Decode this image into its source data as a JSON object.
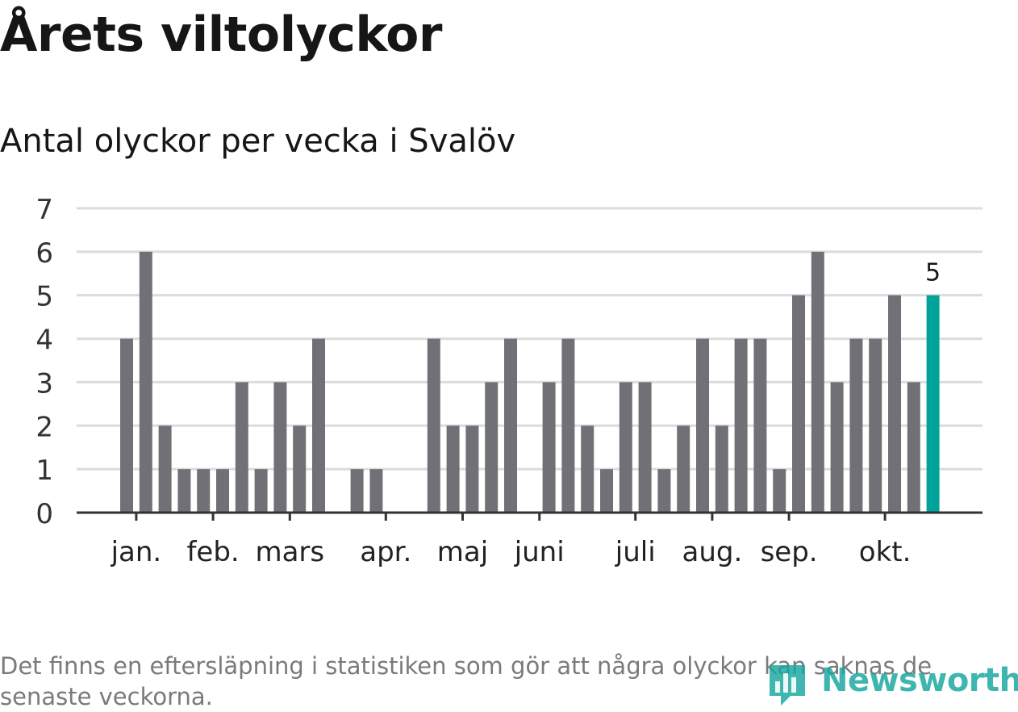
{
  "title": "Årets viltolyckor",
  "chart_data": {
    "type": "bar",
    "title": "Årets viltolyckor",
    "subtitle": "Antal olyckor per vecka i Svalöv",
    "xlabel": "",
    "ylabel": "",
    "ylim": [
      0,
      7
    ],
    "y_ticks": [
      "0",
      "1",
      "2",
      "3",
      "4",
      "5",
      "6",
      "7"
    ],
    "grid": true,
    "weeks": [
      1,
      2,
      3,
      4,
      5,
      6,
      7,
      8,
      9,
      10,
      11,
      12,
      13,
      14,
      15,
      16,
      17,
      18,
      19,
      20,
      21,
      22,
      23,
      24,
      25,
      26,
      27,
      28,
      29,
      30,
      31,
      32,
      33,
      34,
      35,
      36,
      37,
      38,
      39,
      40,
      41,
      42,
      43
    ],
    "values": [
      4,
      6,
      2,
      1,
      1,
      1,
      3,
      1,
      3,
      2,
      4,
      0,
      1,
      1,
      0,
      0,
      4,
      2,
      2,
      3,
      4,
      0,
      3,
      4,
      2,
      1,
      3,
      3,
      1,
      2,
      4,
      2,
      4,
      4,
      1,
      5,
      6,
      3,
      4,
      4,
      5,
      3,
      5
    ],
    "month_labels": [
      {
        "label": "jan.",
        "week": 1.5
      },
      {
        "label": "feb.",
        "week": 5.5
      },
      {
        "label": "mars",
        "week": 9.5
      },
      {
        "label": "apr.",
        "week": 14.5
      },
      {
        "label": "maj",
        "week": 18.5
      },
      {
        "label": "juni",
        "week": 22.5
      },
      {
        "label": "juli",
        "week": 27.5
      },
      {
        "label": "aug.",
        "week": 31.5
      },
      {
        "label": "sep.",
        "week": 35.5
      },
      {
        "label": "okt.",
        "week": 40.5
      }
    ],
    "highlight_label": "5",
    "bar_color": "#717076",
    "highlight_color": "#00a399",
    "grid_color": "#dcdcdc",
    "axis_color": "#333333"
  },
  "footnote": "Det finns en eftersläpning i statistiken som gör att några olyckor kan saknas de senaste veckorna.",
  "brand": {
    "name": "Newsworthy",
    "icon": "newsworthy-logo-icon",
    "color": "#15a69f"
  }
}
